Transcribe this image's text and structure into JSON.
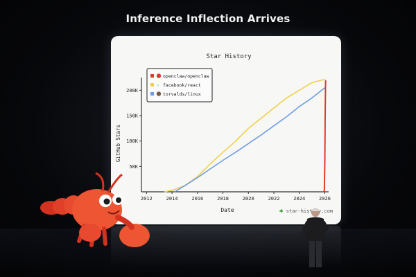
{
  "headline": "Inference Inflection Arrives",
  "brand": {
    "logo_icon": "star-history-logo-icon",
    "text": "star-history.com"
  },
  "colors": {
    "openclaw": "#e03a2f",
    "react": "#f2cf4a",
    "linux": "#6c9ee6",
    "screen_bg": "#f7f7f5"
  },
  "chart_data": {
    "type": "line",
    "title": "Star History",
    "xlabel": "Date",
    "ylabel": "GitHub Stars",
    "xlim": [
      2011.6,
      2026.3
    ],
    "ylim": [
      0,
      225000
    ],
    "x_ticks": [
      2012,
      2014,
      2016,
      2018,
      2020,
      2022,
      2024,
      2026
    ],
    "x_tick_labels": [
      "2012",
      "2014",
      "2016",
      "2018",
      "2020",
      "2022",
      "2024",
      "2026"
    ],
    "y_ticks": [
      50000,
      100000,
      150000,
      200000
    ],
    "y_tick_labels": [
      "50K",
      "100K",
      "150K",
      "200K"
    ],
    "grid": false,
    "legend": "top-left",
    "series": [
      {
        "name": "openclaw/openclaw",
        "color": "#e03a2f",
        "x": [
          2025.92,
          2025.96,
          2026.0,
          2026.03,
          2026.06
        ],
        "y": [
          0,
          2000,
          60000,
          150000,
          220000
        ]
      },
      {
        "name": "facebook/react",
        "color": "#f2cf4a",
        "x": [
          2013.4,
          2014,
          2015,
          2016,
          2017,
          2018,
          2019,
          2020,
          2021,
          2022,
          2023,
          2024,
          2025,
          2026
        ],
        "y": [
          0,
          3000,
          12000,
          30000,
          55000,
          78000,
          100000,
          125000,
          145000,
          165000,
          185000,
          200000,
          215000,
          232000
        ]
      },
      {
        "name": "torvalds/linux",
        "color": "#6c9ee6",
        "x": [
          2014.2,
          2015,
          2016,
          2017,
          2018,
          2019,
          2020,
          2021,
          2022,
          2023,
          2024,
          2025,
          2026
        ],
        "y": [
          0,
          12000,
          28000,
          45000,
          62000,
          78000,
          95000,
          112000,
          130000,
          148000,
          168000,
          185000,
          205000
        ]
      }
    ]
  }
}
